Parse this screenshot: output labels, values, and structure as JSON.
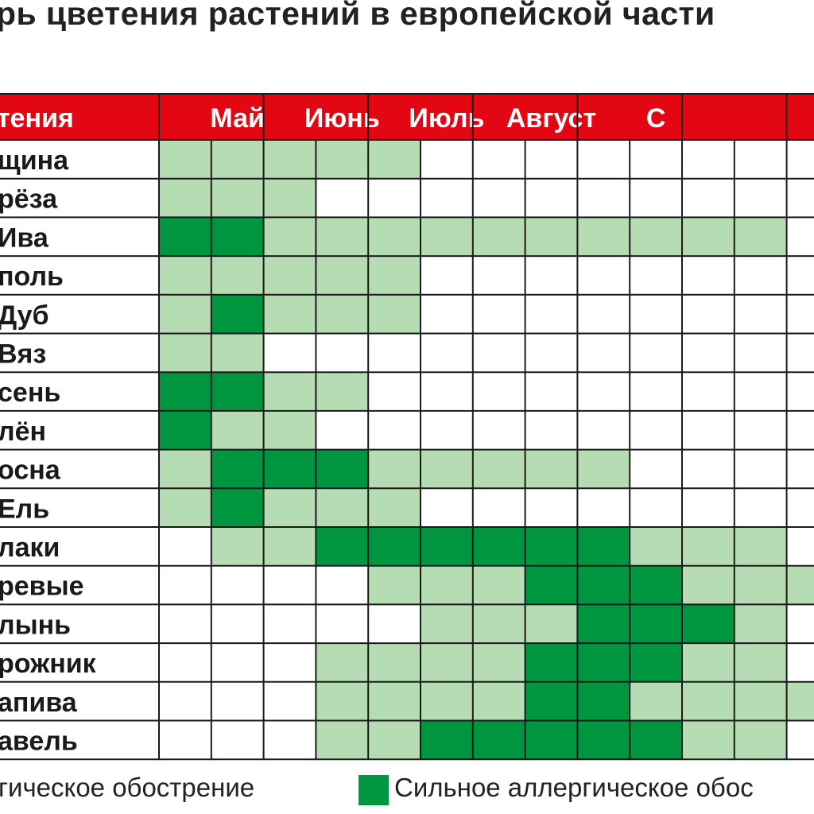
{
  "title": "рь цветения растений в европейской части",
  "colors": {
    "header_bg": "#e30613",
    "header_text": "#ffffff",
    "moderate": "#b5dcb2",
    "strong": "#00963f",
    "none": "#ffffff",
    "grid": "#1a1a1a"
  },
  "chart_data": {
    "type": "heatmap",
    "levels": {
      "0": "none",
      "1": "moderate",
      "2": "strong"
    },
    "header": {
      "first_column": "тения",
      "months": [
        "Май",
        "Июнь",
        "Июль",
        "Август",
        "С"
      ]
    },
    "rows": [
      {
        "label": "щина",
        "values": [
          1,
          1,
          1,
          1,
          1,
          0,
          0,
          0,
          0,
          0,
          0,
          0,
          0
        ]
      },
      {
        "label": "рёза",
        "values": [
          1,
          1,
          1,
          0,
          0,
          0,
          0,
          0,
          0,
          0,
          0,
          0,
          0
        ]
      },
      {
        "label": "Ива",
        "values": [
          2,
          2,
          1,
          1,
          1,
          1,
          1,
          1,
          1,
          1,
          1,
          1,
          0
        ]
      },
      {
        "label": "поль",
        "values": [
          1,
          1,
          1,
          1,
          1,
          0,
          0,
          0,
          0,
          0,
          0,
          0,
          0
        ]
      },
      {
        "label": "Дуб",
        "values": [
          1,
          2,
          1,
          1,
          1,
          0,
          0,
          0,
          0,
          0,
          0,
          0,
          0
        ]
      },
      {
        "label": "Вяз",
        "values": [
          1,
          1,
          0,
          0,
          0,
          0,
          0,
          0,
          0,
          0,
          0,
          0,
          0
        ]
      },
      {
        "label": "сень",
        "values": [
          2,
          2,
          1,
          1,
          0,
          0,
          0,
          0,
          0,
          0,
          0,
          0,
          0
        ]
      },
      {
        "label": "лён",
        "values": [
          2,
          1,
          1,
          0,
          0,
          0,
          0,
          0,
          0,
          0,
          0,
          0,
          0
        ]
      },
      {
        "label": "осна",
        "values": [
          1,
          2,
          2,
          2,
          1,
          1,
          1,
          1,
          1,
          0,
          0,
          0,
          0
        ]
      },
      {
        "label": "Ель",
        "values": [
          1,
          2,
          1,
          1,
          1,
          0,
          0,
          0,
          0,
          0,
          0,
          0,
          0
        ]
      },
      {
        "label": "лаки",
        "values": [
          0,
          1,
          1,
          2,
          2,
          2,
          2,
          2,
          2,
          1,
          1,
          1,
          0
        ]
      },
      {
        "label": "ревые",
        "values": [
          0,
          0,
          0,
          0,
          1,
          1,
          1,
          2,
          2,
          2,
          1,
          1,
          1
        ]
      },
      {
        "label": "лынь",
        "values": [
          0,
          0,
          0,
          0,
          0,
          1,
          1,
          1,
          2,
          2,
          2,
          1,
          0
        ]
      },
      {
        "label": "рожник",
        "values": [
          0,
          0,
          0,
          1,
          1,
          1,
          1,
          2,
          2,
          2,
          1,
          1,
          0
        ]
      },
      {
        "label": "апива",
        "values": [
          0,
          0,
          0,
          1,
          1,
          1,
          1,
          2,
          2,
          1,
          1,
          1,
          1
        ]
      },
      {
        "label": "авель",
        "values": [
          0,
          0,
          0,
          1,
          1,
          2,
          2,
          2,
          2,
          2,
          1,
          1,
          0
        ]
      }
    ],
    "legend": [
      {
        "label": "гическое обострение",
        "level": 1
      },
      {
        "label": "Сильное аллергическое обос",
        "level": 2
      }
    ]
  }
}
